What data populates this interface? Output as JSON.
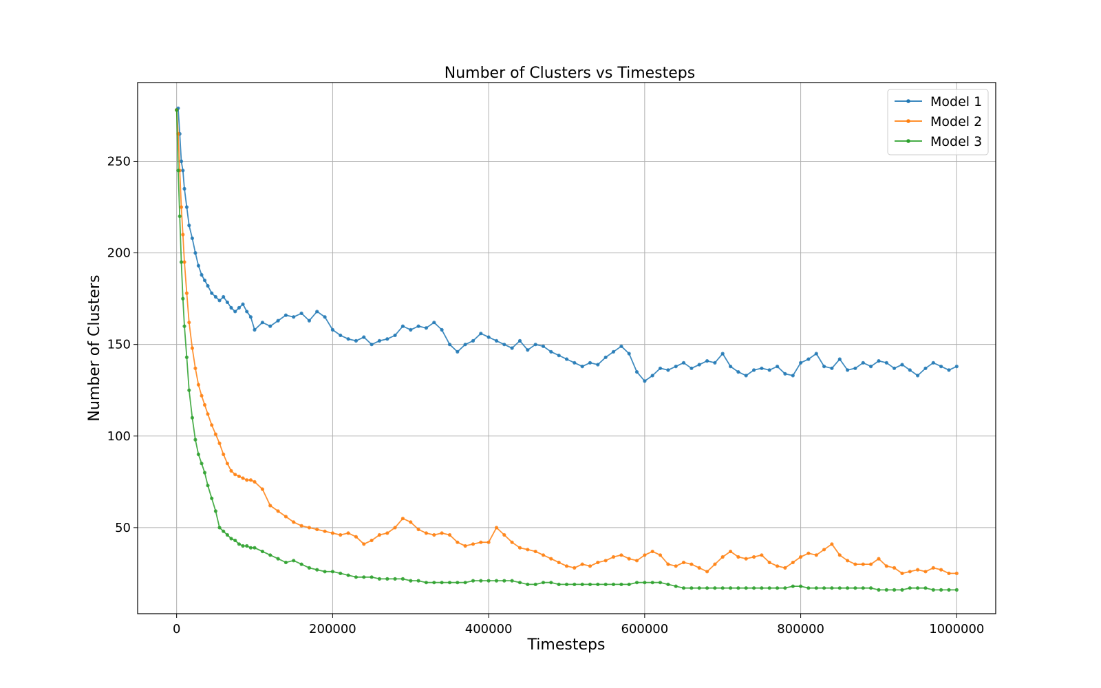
{
  "chart_data": {
    "type": "line",
    "title": "Number of Clusters vs Timesteps",
    "xlabel": "Timesteps",
    "ylabel": "Number of Clusters",
    "xlim": [
      -50000,
      1050000
    ],
    "ylim": [
      3,
      293
    ],
    "x_ticks": [
      0,
      200000,
      400000,
      600000,
      800000,
      1000000
    ],
    "y_ticks": [
      50,
      100,
      150,
      200,
      250
    ],
    "grid": true,
    "legend_position": "top-right",
    "series": [
      {
        "name": "Model 1",
        "color": "#1f77b4",
        "x": [
          0,
          2000,
          4000,
          6000,
          8000,
          10000,
          13000,
          16000,
          20000,
          24000,
          28000,
          32000,
          36000,
          40000,
          45000,
          50000,
          55000,
          60000,
          65000,
          70000,
          75000,
          80000,
          85000,
          90000,
          95000,
          100000,
          110000,
          120000,
          130000,
          140000,
          150000,
          160000,
          170000,
          180000,
          190000,
          200000,
          210000,
          220000,
          230000,
          240000,
          250000,
          260000,
          270000,
          280000,
          290000,
          300000,
          310000,
          320000,
          330000,
          340000,
          350000,
          360000,
          370000,
          380000,
          390000,
          400000,
          410000,
          420000,
          430000,
          440000,
          450000,
          460000,
          470000,
          480000,
          490000,
          500000,
          510000,
          520000,
          530000,
          540000,
          550000,
          560000,
          570000,
          580000,
          590000,
          600000,
          610000,
          620000,
          630000,
          640000,
          650000,
          660000,
          670000,
          680000,
          690000,
          700000,
          710000,
          720000,
          730000,
          740000,
          750000,
          760000,
          770000,
          780000,
          790000,
          800000,
          810000,
          820000,
          830000,
          840000,
          850000,
          860000,
          870000,
          880000,
          890000,
          900000,
          910000,
          920000,
          930000,
          940000,
          950000,
          960000,
          970000,
          980000,
          990000,
          1000000
        ],
        "values": [
          278,
          279,
          265,
          250,
          245,
          235,
          225,
          215,
          208,
          200,
          193,
          188,
          185,
          182,
          178,
          176,
          174,
          176,
          173,
          170,
          168,
          170,
          172,
          168,
          165,
          158,
          162,
          160,
          163,
          166,
          165,
          167,
          163,
          168,
          165,
          158,
          155,
          153,
          152,
          154,
          150,
          152,
          153,
          155,
          160,
          158,
          160,
          159,
          162,
          158,
          150,
          146,
          150,
          152,
          156,
          154,
          152,
          150,
          148,
          152,
          147,
          150,
          149,
          146,
          144,
          142,
          140,
          138,
          140,
          139,
          143,
          146,
          149,
          145,
          135,
          130,
          133,
          137,
          136,
          138,
          140,
          137,
          139,
          141,
          140,
          145,
          138,
          135,
          133,
          136,
          137,
          136,
          138,
          134,
          133,
          140,
          142,
          145,
          138,
          137,
          142,
          136,
          137,
          140,
          138,
          141,
          140,
          137,
          139,
          136,
          133,
          137,
          140,
          138,
          136,
          138
        ]
      },
      {
        "name": "Model 2",
        "color": "#ff7f0e",
        "x": [
          0,
          2000,
          4000,
          6000,
          8000,
          10000,
          13000,
          16000,
          20000,
          24000,
          28000,
          32000,
          36000,
          40000,
          45000,
          50000,
          55000,
          60000,
          65000,
          70000,
          75000,
          80000,
          85000,
          90000,
          95000,
          100000,
          110000,
          120000,
          130000,
          140000,
          150000,
          160000,
          170000,
          180000,
          190000,
          200000,
          210000,
          220000,
          230000,
          240000,
          250000,
          260000,
          270000,
          280000,
          290000,
          300000,
          310000,
          320000,
          330000,
          340000,
          350000,
          360000,
          370000,
          380000,
          390000,
          400000,
          410000,
          420000,
          430000,
          440000,
          450000,
          460000,
          470000,
          480000,
          490000,
          500000,
          510000,
          520000,
          530000,
          540000,
          550000,
          560000,
          570000,
          580000,
          590000,
          600000,
          610000,
          620000,
          630000,
          640000,
          650000,
          660000,
          670000,
          680000,
          690000,
          700000,
          710000,
          720000,
          730000,
          740000,
          750000,
          760000,
          770000,
          780000,
          790000,
          800000,
          810000,
          820000,
          830000,
          840000,
          850000,
          860000,
          870000,
          880000,
          890000,
          900000,
          910000,
          920000,
          930000,
          940000,
          950000,
          960000,
          970000,
          980000,
          990000,
          1000000
        ],
        "values": [
          278,
          265,
          245,
          225,
          210,
          195,
          178,
          162,
          148,
          137,
          128,
          122,
          117,
          112,
          106,
          101,
          96,
          90,
          85,
          81,
          79,
          78,
          77,
          76,
          76,
          75,
          71,
          62,
          59,
          56,
          53,
          51,
          50,
          49,
          48,
          47,
          46,
          47,
          45,
          41,
          43,
          46,
          47,
          50,
          55,
          53,
          49,
          47,
          46,
          47,
          46,
          42,
          40,
          41,
          42,
          42,
          50,
          46,
          42,
          39,
          38,
          37,
          35,
          33,
          31,
          29,
          28,
          30,
          29,
          31,
          32,
          34,
          35,
          33,
          32,
          35,
          37,
          35,
          30,
          29,
          31,
          30,
          28,
          26,
          30,
          34,
          37,
          34,
          33,
          34,
          35,
          31,
          29,
          28,
          31,
          34,
          36,
          35,
          38,
          41,
          35,
          32,
          30,
          30,
          30,
          33,
          29,
          28,
          25,
          26,
          27,
          26,
          28,
          27,
          25,
          25
        ]
      },
      {
        "name": "Model 3",
        "color": "#2ca02c",
        "x": [
          0,
          2000,
          4000,
          6000,
          8000,
          10000,
          13000,
          16000,
          20000,
          24000,
          28000,
          32000,
          36000,
          40000,
          45000,
          50000,
          55000,
          60000,
          65000,
          70000,
          75000,
          80000,
          85000,
          90000,
          95000,
          100000,
          110000,
          120000,
          130000,
          140000,
          150000,
          160000,
          170000,
          180000,
          190000,
          200000,
          210000,
          220000,
          230000,
          240000,
          250000,
          260000,
          270000,
          280000,
          290000,
          300000,
          310000,
          320000,
          330000,
          340000,
          350000,
          360000,
          370000,
          380000,
          390000,
          400000,
          410000,
          420000,
          430000,
          440000,
          450000,
          460000,
          470000,
          480000,
          490000,
          500000,
          510000,
          520000,
          530000,
          540000,
          550000,
          560000,
          570000,
          580000,
          590000,
          600000,
          610000,
          620000,
          630000,
          640000,
          650000,
          660000,
          670000,
          680000,
          690000,
          700000,
          710000,
          720000,
          730000,
          740000,
          750000,
          760000,
          770000,
          780000,
          790000,
          800000,
          810000,
          820000,
          830000,
          840000,
          850000,
          860000,
          870000,
          880000,
          890000,
          900000,
          910000,
          920000,
          930000,
          940000,
          950000,
          960000,
          970000,
          980000,
          990000,
          1000000
        ],
        "values": [
          278,
          245,
          220,
          195,
          175,
          160,
          143,
          125,
          110,
          98,
          90,
          85,
          80,
          73,
          66,
          59,
          50,
          48,
          46,
          44,
          43,
          41,
          40,
          40,
          39,
          39,
          37,
          35,
          33,
          31,
          32,
          30,
          28,
          27,
          26,
          26,
          25,
          24,
          23,
          23,
          23,
          22,
          22,
          22,
          22,
          21,
          21,
          20,
          20,
          20,
          20,
          20,
          20,
          21,
          21,
          21,
          21,
          21,
          21,
          20,
          19,
          19,
          20,
          20,
          19,
          19,
          19,
          19,
          19,
          19,
          19,
          19,
          19,
          19,
          20,
          20,
          20,
          20,
          19,
          18,
          17,
          17,
          17,
          17,
          17,
          17,
          17,
          17,
          17,
          17,
          17,
          17,
          17,
          17,
          18,
          18,
          17,
          17,
          17,
          17,
          17,
          17,
          17,
          17,
          17,
          16,
          16,
          16,
          16,
          17,
          17,
          17,
          16,
          16,
          16,
          16
        ]
      }
    ]
  }
}
